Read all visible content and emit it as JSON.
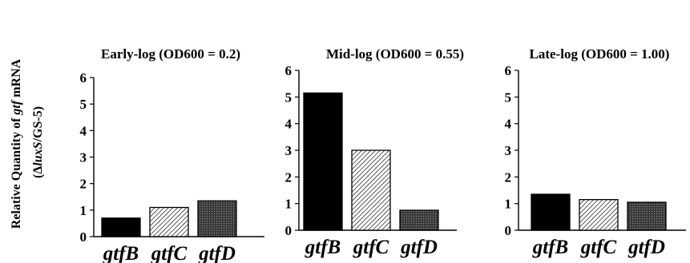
{
  "figure": {
    "ylabel_line1_prefix": "Relative Quantity of ",
    "ylabel_line1_italic": "gtf",
    "ylabel_line1_suffix": " mRNA",
    "ylabel_line2_open": "(Δ",
    "ylabel_line2_italic": "luxS",
    "ylabel_line2_rest": "/GS-5)"
  },
  "colors": {
    "gtfB": "#000000",
    "gtfC": "hatch",
    "gtfD": "#555555"
  },
  "chart_data": [
    {
      "type": "bar",
      "title": "Early-log (OD600 = 0.2)",
      "categories": [
        "gtfB",
        "gtfC",
        "gtfD"
      ],
      "values": [
        0.7,
        1.1,
        1.35
      ],
      "ylim": [
        0,
        6
      ],
      "yticks": [
        "0",
        "1",
        "2",
        "3",
        "4",
        "5",
        "6"
      ],
      "grid": false
    },
    {
      "type": "bar",
      "title": "Mid-log (OD600 = 0.55)",
      "categories": [
        "gtfB",
        "gtfC",
        "gtfD"
      ],
      "values": [
        5.15,
        3.0,
        0.75
      ],
      "ylim": [
        0,
        6
      ],
      "yticks": [
        "0",
        "1",
        "2",
        "3",
        "4",
        "5",
        "6"
      ],
      "grid": false
    },
    {
      "type": "bar",
      "title": "Late-log (OD600 = 1.00)",
      "categories": [
        "gtfB",
        "gtfC",
        "gtfD"
      ],
      "values": [
        1.35,
        1.15,
        1.05
      ],
      "ylim": [
        0,
        6
      ],
      "yticks": [
        "0",
        "1",
        "2",
        "3",
        "4",
        "5",
        "6"
      ],
      "grid": false
    }
  ]
}
